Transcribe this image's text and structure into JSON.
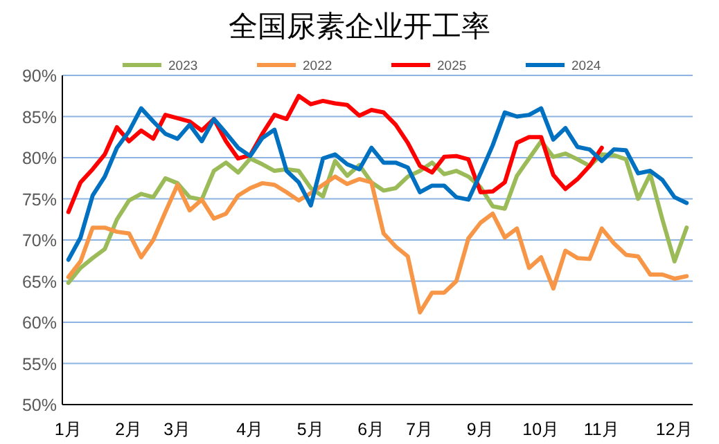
{
  "chart_data": {
    "type": "line",
    "title": "全国尿素企业开工率",
    "categories": [
      "1月",
      null,
      null,
      null,
      null,
      "2月",
      null,
      null,
      null,
      "3月",
      null,
      null,
      null,
      null,
      null,
      "4月",
      null,
      null,
      null,
      null,
      "5月",
      null,
      null,
      null,
      null,
      "6月",
      null,
      null,
      null,
      "7月",
      null,
      null,
      null,
      null,
      "9月",
      null,
      null,
      null,
      null,
      "10月",
      null,
      null,
      null,
      null,
      "11月",
      null,
      null,
      null,
      null,
      null,
      "12月",
      null
    ],
    "ylim": [
      50,
      90
    ],
    "yticks": [
      {
        "value": 50,
        "label": "50%"
      },
      {
        "value": 55,
        "label": "55%"
      },
      {
        "value": 60,
        "label": "60%"
      },
      {
        "value": 65,
        "label": "65%"
      },
      {
        "value": 70,
        "label": "70%"
      },
      {
        "value": 75,
        "label": "75%"
      },
      {
        "value": 80,
        "label": "80%"
      },
      {
        "value": 85,
        "label": "85%"
      },
      {
        "value": 90,
        "label": "90%"
      }
    ],
    "grid": "y",
    "legend": "top",
    "marker": "none",
    "line_style": "solid",
    "series": [
      {
        "name": "2023",
        "color": "#9bbb59",
        "values": [
          64.8,
          66.6,
          67.8,
          68.9,
          72.5,
          74.8,
          75.6,
          75.2,
          77.5,
          76.9,
          75.2,
          74.9,
          78.4,
          79.4,
          78.2,
          79.9,
          79.2,
          78.4,
          78.6,
          78.4,
          76.3,
          75.3,
          79.6,
          77.8,
          79.1,
          77,
          76,
          76.3,
          77.7,
          78.4,
          79.4,
          78,
          78.4,
          77.7,
          76.4,
          74.1,
          73.8,
          77.8,
          79.9,
          82,
          80.1,
          80.5,
          79.8,
          79,
          80.4,
          80.3,
          79.8,
          75,
          78,
          72.5,
          67.4,
          71.5
        ]
      },
      {
        "name": "2022",
        "color": "#f79646",
        "values": [
          65.5,
          67.4,
          71.5,
          71.5,
          71,
          70.8,
          67.9,
          70,
          73.4,
          76.7,
          73.6,
          74.9,
          72.6,
          73.2,
          75.4,
          76.3,
          76.9,
          76.7,
          75.8,
          74.8,
          75.7,
          76.7,
          77.7,
          76.8,
          77.4,
          77,
          70.8,
          69.2,
          68,
          61.2,
          63.6,
          63.6,
          65,
          70.2,
          72.1,
          73.2,
          70.3,
          71.4,
          66.6,
          67.9,
          64.1,
          68.7,
          67.8,
          67.7,
          71.4,
          69.6,
          68.2,
          68,
          65.8,
          65.8,
          65.3,
          65.6
        ]
      },
      {
        "name": "2025",
        "color": "#ff0000",
        "values": [
          73.4,
          77,
          78.6,
          80.4,
          83.7,
          82,
          83.3,
          82.3,
          85.2,
          84.8,
          84.4,
          83.3,
          84.7,
          82,
          79.9,
          80.3,
          82.9,
          85.2,
          84.7,
          87.5,
          86.5,
          86.9,
          86.6,
          86.4,
          85.1,
          85.8,
          85.5,
          84,
          81.8,
          79,
          78.2,
          80.1,
          80.2,
          79.8,
          75.8,
          75.9,
          77,
          81.8,
          82.5,
          82.5,
          77.9,
          76.2,
          77.4,
          79,
          81.2,
          null,
          null,
          null,
          null,
          null,
          null,
          null
        ]
      },
      {
        "name": "2024",
        "color": "#0070c0",
        "values": [
          67.6,
          70.3,
          75.4,
          77.7,
          81.2,
          83.2,
          86,
          84.4,
          82.9,
          82.3,
          84,
          82,
          84.7,
          83,
          81.2,
          80.2,
          82.4,
          83.4,
          78.4,
          77,
          74.2,
          79.9,
          80.4,
          79.2,
          78.6,
          81.2,
          79.4,
          79.4,
          78.8,
          75.8,
          76.6,
          76.6,
          75.2,
          74.9,
          78.1,
          81.5,
          85.5,
          85,
          85.2,
          86,
          82.2,
          83.6,
          81.3,
          81,
          79.6,
          81,
          80.9,
          78.1,
          78.4,
          77.3,
          75.2,
          74.5
        ]
      }
    ]
  }
}
